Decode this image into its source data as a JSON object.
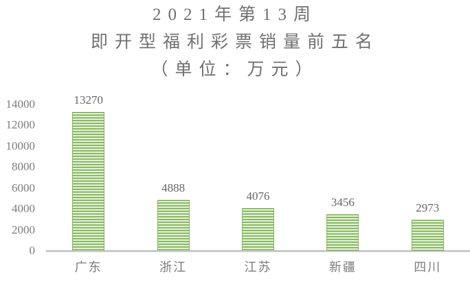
{
  "chart_data": {
    "type": "bar",
    "title": "2021年第13周 即开型福利彩票销量前五名（单位：万元）",
    "title_lines": [
      "2021年第13周",
      "即开型福利彩票销量前五名",
      "（单位：万元）"
    ],
    "categories": [
      "广东",
      "浙江",
      "江苏",
      "新疆",
      "四川"
    ],
    "values": [
      13270,
      4888,
      4076,
      3456,
      2973
    ],
    "y_ticks": [
      0,
      2000,
      4000,
      6000,
      8000,
      10000,
      12000,
      14000
    ],
    "ylim": [
      0,
      14000
    ],
    "xlabel": "",
    "ylabel": "",
    "legend": "none",
    "grid": false,
    "data_labels_visible": true,
    "colors": {
      "bar_stripe_dark": "#72aa49",
      "bar_stripe_light": "#f4f9ef",
      "bar_border": "#84b65c",
      "axis_line": "#c9c9c9",
      "title_text": "#707070",
      "axis_text": "#7c7c7c",
      "value_text": "#666666",
      "background": "#ffffff"
    }
  }
}
